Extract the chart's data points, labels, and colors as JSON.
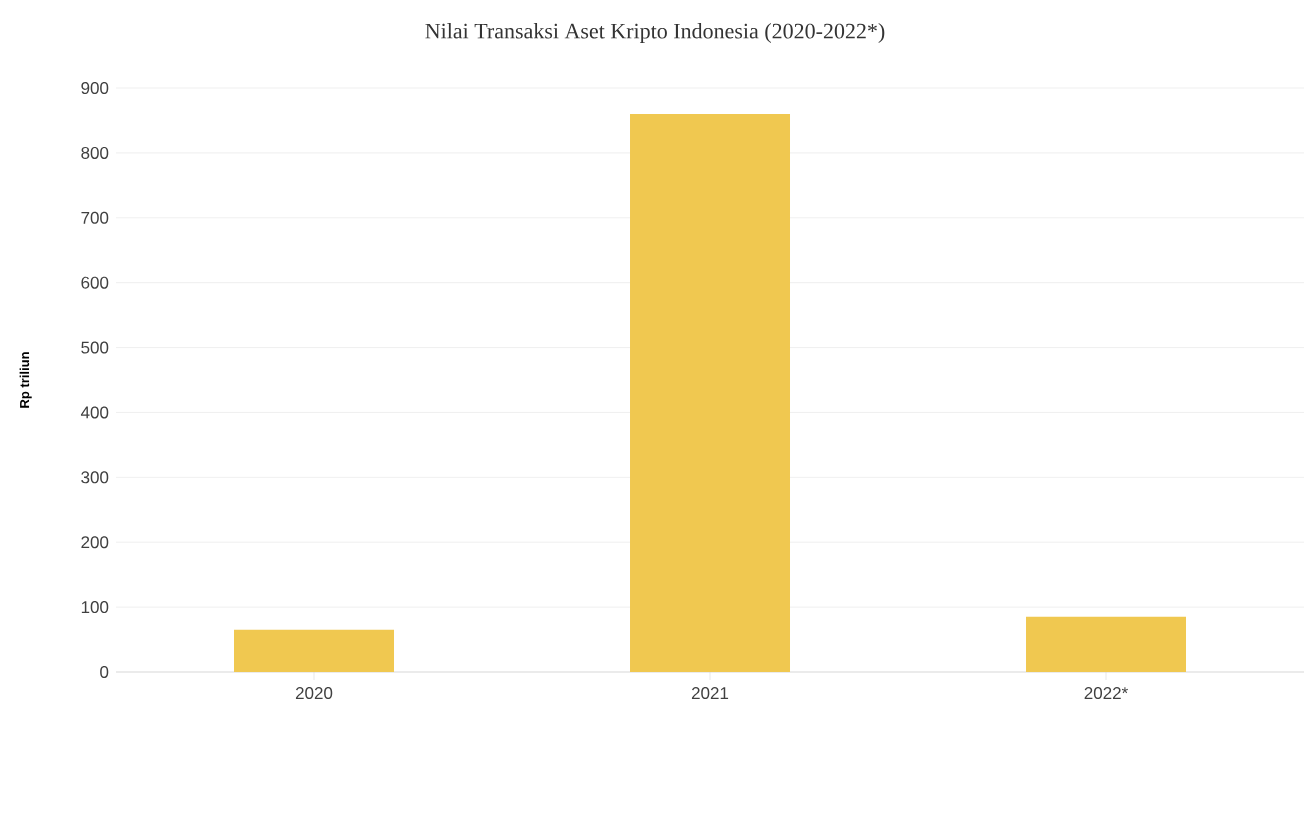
{
  "chart_data": {
    "type": "bar",
    "title": "Nilai Transaksi Aset Kripto Indonesia (2020-2022*)",
    "ylabel": "Rp triliun",
    "categories": [
      "2020",
      "2021",
      "2022*"
    ],
    "values": [
      65,
      860,
      85
    ],
    "color": "#f0c850",
    "ylim": [
      0,
      900
    ],
    "yticks": [
      0,
      100,
      200,
      300,
      400,
      500,
      600,
      700,
      800,
      900
    ],
    "grid": "y"
  }
}
